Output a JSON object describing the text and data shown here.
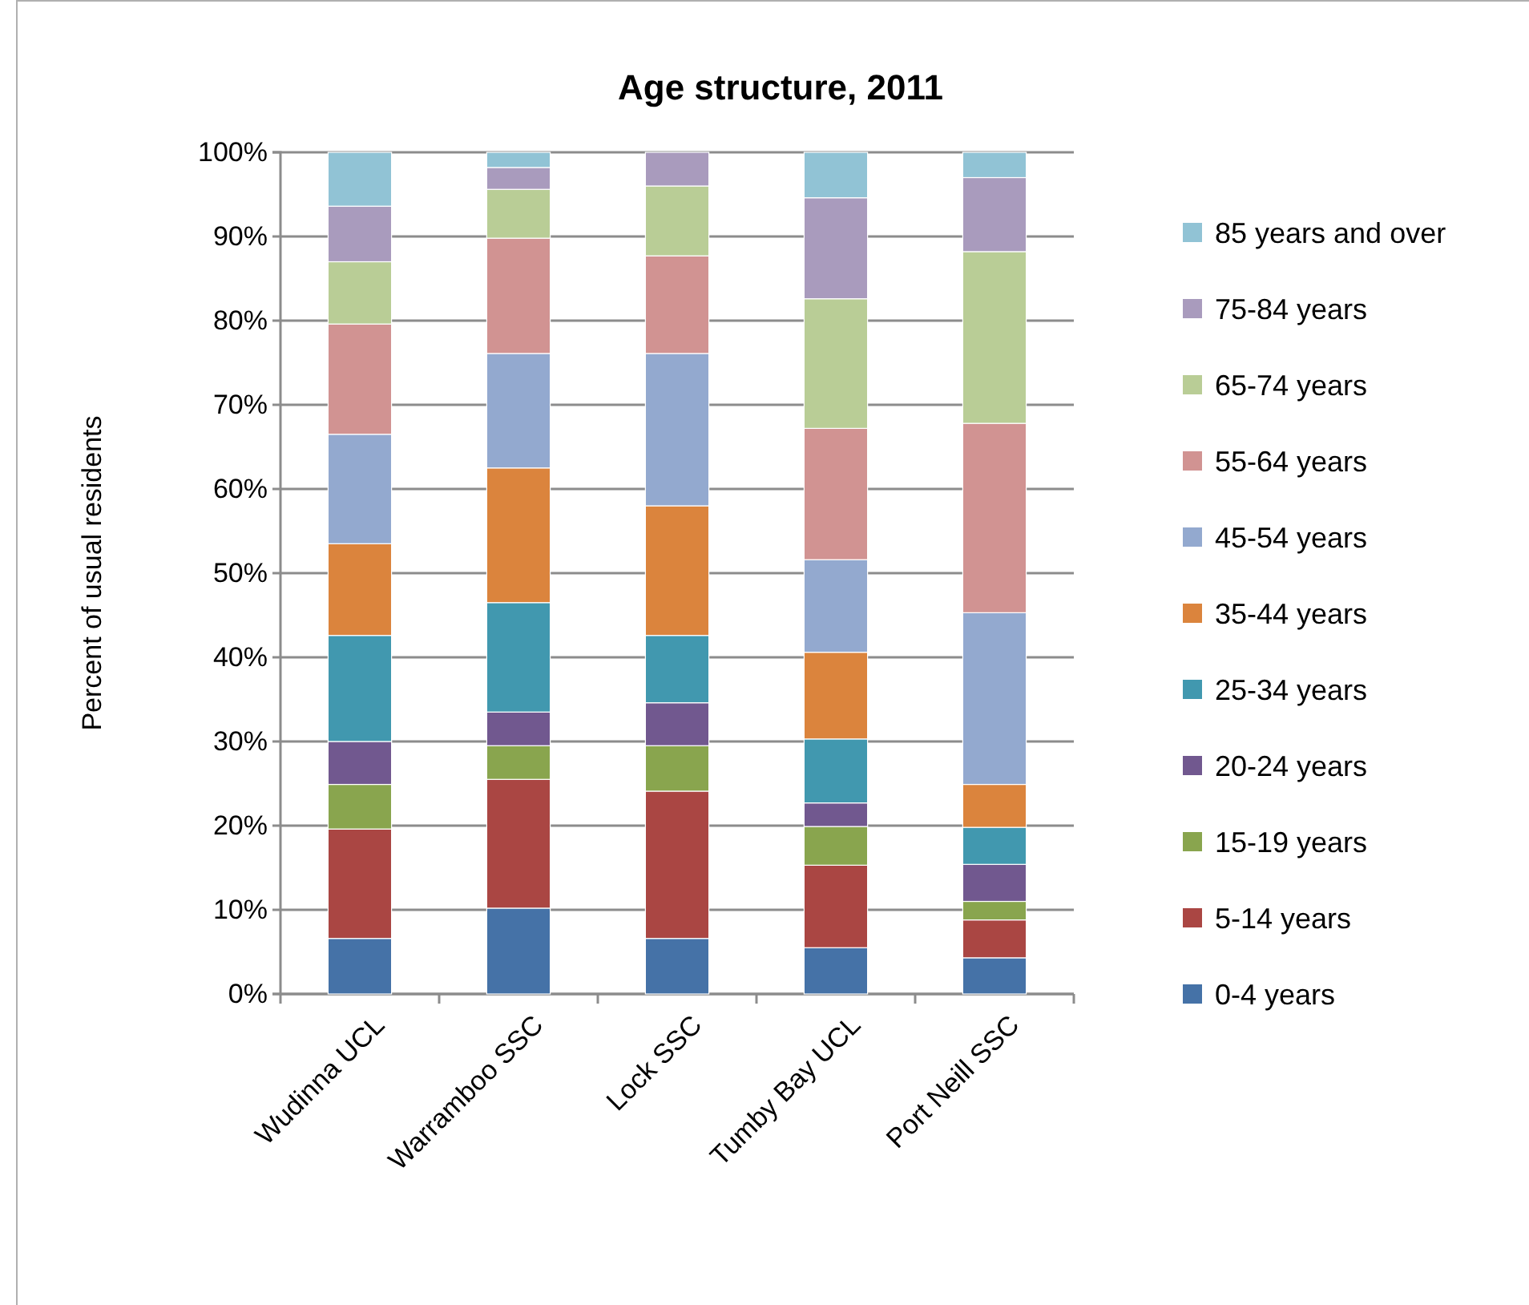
{
  "chart_data": {
    "type": "bar",
    "title": "Age structure, 2011",
    "ylabel": "Percent of usual residents",
    "categories": [
      "Wudinna UCL",
      "Warramboo SSC",
      "Lock SSC",
      "Tumby Bay UCL",
      "Port Neill SSC"
    ],
    "stacked": true,
    "grid": "y",
    "legend": "right",
    "ylim": [
      0,
      100
    ],
    "yticks": [
      {
        "value": 0,
        "label": "0%"
      },
      {
        "value": 10,
        "label": "10%"
      },
      {
        "value": 20,
        "label": "20%"
      },
      {
        "value": 30,
        "label": "30%"
      },
      {
        "value": 40,
        "label": "40%"
      },
      {
        "value": 50,
        "label": "50%"
      },
      {
        "value": 60,
        "label": "60%"
      },
      {
        "value": 70,
        "label": "70%"
      },
      {
        "value": 80,
        "label": "80%"
      },
      {
        "value": 90,
        "label": "90%"
      },
      {
        "value": 100,
        "label": "100%"
      }
    ],
    "series": [
      {
        "name": "0-4 years",
        "color": "#4572a7",
        "values": [
          6.6,
          10.2,
          6.6,
          5.5,
          4.3
        ]
      },
      {
        "name": "5-14 years",
        "color": "#aa4643",
        "values": [
          13.0,
          15.3,
          17.5,
          9.8,
          4.5
        ]
      },
      {
        "name": "15-19 years",
        "color": "#89a54e",
        "values": [
          5.3,
          4.0,
          5.4,
          4.6,
          2.2
        ]
      },
      {
        "name": "20-24 years",
        "color": "#71588f",
        "values": [
          5.1,
          4.0,
          5.1,
          2.8,
          4.4
        ]
      },
      {
        "name": "25-34 years",
        "color": "#4198af",
        "values": [
          12.6,
          13.0,
          8.0,
          7.6,
          4.4
        ]
      },
      {
        "name": "35-44 years",
        "color": "#db843d",
        "values": [
          10.9,
          16.0,
          15.4,
          10.3,
          5.1
        ]
      },
      {
        "name": "45-54 years",
        "color": "#93a9cf",
        "values": [
          13.0,
          13.6,
          18.1,
          11.0,
          20.4
        ]
      },
      {
        "name": "55-64 years",
        "color": "#d19392",
        "values": [
          13.1,
          13.7,
          11.6,
          15.6,
          22.5
        ]
      },
      {
        "name": "65-74 years",
        "color": "#b9cd96",
        "values": [
          7.4,
          5.8,
          8.3,
          15.4,
          20.4
        ]
      },
      {
        "name": "75-84 years",
        "color": "#a99bbd",
        "values": [
          6.6,
          2.6,
          4.0,
          12.0,
          8.8
        ]
      },
      {
        "name": "85 years and over",
        "color": "#91c3d5",
        "values": [
          6.4,
          1.8,
          0,
          5.4,
          3.0
        ]
      }
    ]
  }
}
